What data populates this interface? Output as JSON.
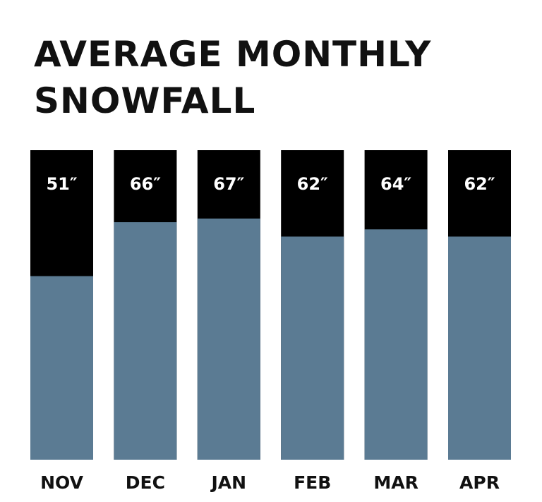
{
  "chart_data": {
    "type": "bar",
    "title": "AVERAGE MONTHLY SNOWFALL",
    "categories": [
      "NOV",
      "DEC",
      "JAN",
      "FEB",
      "MAR",
      "APR"
    ],
    "values": [
      51,
      66,
      67,
      62,
      64,
      62
    ],
    "value_labels": [
      "51″",
      "66″",
      "67″",
      "62″",
      "64″",
      "62″"
    ],
    "color": "#5b7b93",
    "ylim": [
      0,
      86
    ]
  }
}
